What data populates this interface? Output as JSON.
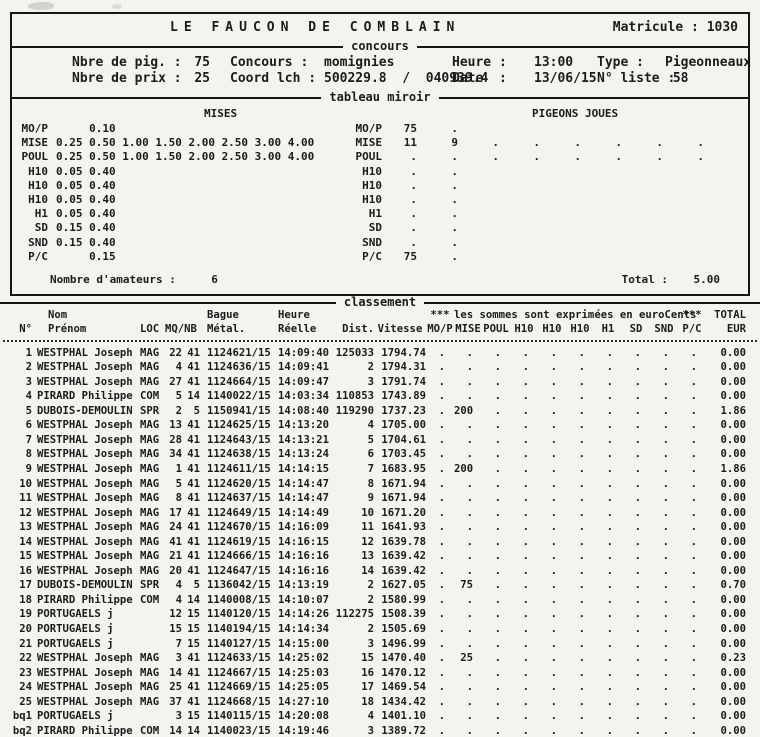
{
  "header": {
    "title": "LE FAUCON DE COMBLAIN",
    "matricule_label": "Matricule :",
    "matricule_value": "1030"
  },
  "concours": {
    "divider": "concours",
    "fields": [
      {
        "label": "Nbre de pig. :",
        "value": "75"
      },
      {
        "label": "Concours :",
        "value": "momignies"
      },
      {
        "label": "Heure :",
        "value": "13:00"
      },
      {
        "label": "Type :",
        "value": "Pigeonneaux"
      },
      {
        "label": "Nbre de prix :",
        "value": "25"
      },
      {
        "label": "Coord lch :",
        "value": "500229.8  /  040939.4"
      },
      {
        "label": "Date  :",
        "value": "13/06/15"
      },
      {
        "label": "N° liste :",
        "value": " 58"
      }
    ]
  },
  "miroir": {
    "divider": "tableau miroir",
    "mises_title": "MISES",
    "pigeons_title": "PIGEONS JOUES",
    "rows": [
      {
        "label": "MO/P",
        "mises": "     0.10",
        "joues": [
          "75",
          "."
        ]
      },
      {
        "label": "MISE",
        "mises": "0.25 0.50 1.00 1.50 2.00 2.50 3.00 4.00",
        "joues": [
          "11",
          "9",
          ".",
          ".",
          ".",
          ".",
          ".",
          "."
        ]
      },
      {
        "label": "POUL",
        "mises": "0.25 0.50 1.00 1.50 2.00 2.50 3.00 4.00",
        "joues": [
          ".",
          ".",
          ".",
          ".",
          ".",
          ".",
          ".",
          "."
        ]
      },
      {
        "label": "H10",
        "mises": "0.05 0.40",
        "joues": [
          ".",
          "."
        ]
      },
      {
        "label": "H10",
        "mises": "0.05 0.40",
        "joues": [
          ".",
          "."
        ]
      },
      {
        "label": "H10",
        "mises": "0.05 0.40",
        "joues": [
          ".",
          "."
        ]
      },
      {
        "label": "H1",
        "mises": "0.05 0.40",
        "joues": [
          ".",
          "."
        ]
      },
      {
        "label": "SD",
        "mises": "0.15 0.40",
        "joues": [
          ".",
          "."
        ]
      },
      {
        "label": "SND",
        "mises": "0.15 0.40",
        "joues": [
          ".",
          "."
        ]
      },
      {
        "label": "P/C",
        "mises": "     0.15",
        "joues": [
          "75",
          "."
        ]
      }
    ],
    "amateurs_label": "Nombre d'amateurs :",
    "amateurs_value": "6",
    "total_label": "Total :",
    "total_value": "5.00"
  },
  "classement": {
    "divider": "classement",
    "stars": "***",
    "banner": "les sommes sont exprimées en euroCents",
    "header": {
      "col_no": "N°",
      "col_nom": "Nom",
      "col_prenom": "Prénom",
      "col_loc": "LOC",
      "col_mqnb": "MQ/NB",
      "col_bague": "Bague",
      "col_metal": "Métal.",
      "col_heure": "Heure",
      "col_reelle": "Réelle",
      "col_dist": "Dist.",
      "col_vitesse": "Vitesse",
      "col_total": "TOTAL",
      "col_eur": "EUR",
      "stakes": [
        "MO/P",
        "MISE",
        "POUL",
        "H10",
        "H10",
        "H10",
        "H1",
        "SD",
        "SND",
        "P/C"
      ]
    },
    "empty_marker": ".",
    "rows": [
      {
        "no": "1",
        "name": "WESTPHAL Joseph",
        "loc": "MAG",
        "mq": "22",
        "nb": "41",
        "bague": "1124621/15",
        "heure": "14:09:40",
        "dist": "125033",
        "vitesse": "1794.74",
        "mise": "",
        "total": "0.00"
      },
      {
        "no": "2",
        "name": "WESTPHAL Joseph",
        "loc": "MAG",
        "mq": "4",
        "nb": "41",
        "bague": "1124636/15",
        "heure": "14:09:41",
        "dist": "2",
        "vitesse": "1794.31",
        "mise": "",
        "total": "0.00"
      },
      {
        "no": "3",
        "name": "WESTPHAL Joseph",
        "loc": "MAG",
        "mq": "27",
        "nb": "41",
        "bague": "1124664/15",
        "heure": "14:09:47",
        "dist": "3",
        "vitesse": "1791.74",
        "mise": "",
        "total": "0.00"
      },
      {
        "no": "4",
        "name": "PIRARD Philippe",
        "loc": "COM",
        "mq": "5",
        "nb": "14",
        "bague": "1140022/15",
        "heure": "14:03:34",
        "dist": "110853",
        "vitesse": "1743.89",
        "mise": "",
        "total": "0.00"
      },
      {
        "no": "5",
        "name": "DUBOIS-DEMOULIN",
        "loc": "SPR",
        "mq": "2",
        "nb": "5",
        "bague": "1150941/15",
        "heure": "14:08:40",
        "dist": "119290",
        "vitesse": "1737.23",
        "mise": "200",
        "total": "1.86"
      },
      {
        "no": "6",
        "name": "WESTPHAL Joseph",
        "loc": "MAG",
        "mq": "13",
        "nb": "41",
        "bague": "1124625/15",
        "heure": "14:13:20",
        "dist": "4",
        "vitesse": "1705.00",
        "mise": "",
        "total": "0.00"
      },
      {
        "no": "7",
        "name": "WESTPHAL Joseph",
        "loc": "MAG",
        "mq": "28",
        "nb": "41",
        "bague": "1124643/15",
        "heure": "14:13:21",
        "dist": "5",
        "vitesse": "1704.61",
        "mise": "",
        "total": "0.00"
      },
      {
        "no": "8",
        "name": "WESTPHAL Joseph",
        "loc": "MAG",
        "mq": "34",
        "nb": "41",
        "bague": "1124638/15",
        "heure": "14:13:24",
        "dist": "6",
        "vitesse": "1703.45",
        "mise": "",
        "total": "0.00"
      },
      {
        "no": "9",
        "name": "WESTPHAL Joseph",
        "loc": "MAG",
        "mq": "1",
        "nb": "41",
        "bague": "1124611/15",
        "heure": "14:14:15",
        "dist": "7",
        "vitesse": "1683.95",
        "mise": "200",
        "total": "1.86"
      },
      {
        "no": "10",
        "name": "WESTPHAL Joseph",
        "loc": "MAG",
        "mq": "5",
        "nb": "41",
        "bague": "1124620/15",
        "heure": "14:14:47",
        "dist": "8",
        "vitesse": "1671.94",
        "mise": "",
        "total": "0.00"
      },
      {
        "no": "11",
        "name": "WESTPHAL Joseph",
        "loc": "MAG",
        "mq": "8",
        "nb": "41",
        "bague": "1124637/15",
        "heure": "14:14:47",
        "dist": "9",
        "vitesse": "1671.94",
        "mise": "",
        "total": "0.00"
      },
      {
        "no": "12",
        "name": "WESTPHAL Joseph",
        "loc": "MAG",
        "mq": "17",
        "nb": "41",
        "bague": "1124649/15",
        "heure": "14:14:49",
        "dist": "10",
        "vitesse": "1671.20",
        "mise": "",
        "total": "0.00"
      },
      {
        "no": "13",
        "name": "WESTPHAL Joseph",
        "loc": "MAG",
        "mq": "24",
        "nb": "41",
        "bague": "1124670/15",
        "heure": "14:16:09",
        "dist": "11",
        "vitesse": "1641.93",
        "mise": "",
        "total": "0.00"
      },
      {
        "no": "14",
        "name": "WESTPHAL Joseph",
        "loc": "MAG",
        "mq": "41",
        "nb": "41",
        "bague": "1124619/15",
        "heure": "14:16:15",
        "dist": "12",
        "vitesse": "1639.78",
        "mise": "",
        "total": "0.00"
      },
      {
        "no": "15",
        "name": "WESTPHAL Joseph",
        "loc": "MAG",
        "mq": "21",
        "nb": "41",
        "bague": "1124666/15",
        "heure": "14:16:16",
        "dist": "13",
        "vitesse": "1639.42",
        "mise": "",
        "total": "0.00"
      },
      {
        "no": "16",
        "name": "WESTPHAL Joseph",
        "loc": "MAG",
        "mq": "20",
        "nb": "41",
        "bague": "1124647/15",
        "heure": "14:16:16",
        "dist": "14",
        "vitesse": "1639.42",
        "mise": "",
        "total": "0.00"
      },
      {
        "no": "17",
        "name": "DUBOIS-DEMOULIN",
        "loc": "SPR",
        "mq": "4",
        "nb": "5",
        "bague": "1136042/15",
        "heure": "14:13:19",
        "dist": "2",
        "vitesse": "1627.05",
        "mise": "75",
        "total": "0.70"
      },
      {
        "no": "18",
        "name": "PIRARD Philippe",
        "loc": "COM",
        "mq": "4",
        "nb": "14",
        "bague": "1140008/15",
        "heure": "14:10:07",
        "dist": "2",
        "vitesse": "1580.99",
        "mise": "",
        "total": "0.00"
      },
      {
        "no": "19",
        "name": "PORTUGAELS j",
        "loc": "",
        "mq": "12",
        "nb": "15",
        "bague": "1140120/15",
        "heure": "14:14:26",
        "dist": "112275",
        "vitesse": "1508.39",
        "mise": "",
        "total": "0.00"
      },
      {
        "no": "20",
        "name": "PORTUGAELS j",
        "loc": "",
        "mq": "15",
        "nb": "15",
        "bague": "1140194/15",
        "heure": "14:14:34",
        "dist": "2",
        "vitesse": "1505.69",
        "mise": "",
        "total": "0.00"
      },
      {
        "no": "21",
        "name": "PORTUGAELS j",
        "loc": "",
        "mq": "7",
        "nb": "15",
        "bague": "1140127/15",
        "heure": "14:15:00",
        "dist": "3",
        "vitesse": "1496.99",
        "mise": "",
        "total": "0.00"
      },
      {
        "no": "22",
        "name": "WESTPHAL Joseph",
        "loc": "MAG",
        "mq": "3",
        "nb": "41",
        "bague": "1124633/15",
        "heure": "14:25:02",
        "dist": "15",
        "vitesse": "1470.40",
        "mise": "25",
        "total": "0.23"
      },
      {
        "no": "23",
        "name": "WESTPHAL Joseph",
        "loc": "MAG",
        "mq": "14",
        "nb": "41",
        "bague": "1124667/15",
        "heure": "14:25:03",
        "dist": "16",
        "vitesse": "1470.12",
        "mise": "",
        "total": "0.00"
      },
      {
        "no": "24",
        "name": "WESTPHAL Joseph",
        "loc": "MAG",
        "mq": "25",
        "nb": "41",
        "bague": "1124669/15",
        "heure": "14:25:05",
        "dist": "17",
        "vitesse": "1469.54",
        "mise": "",
        "total": "0.00"
      },
      {
        "no": "25",
        "name": "WESTPHAL Joseph",
        "loc": "MAG",
        "mq": "37",
        "nb": "41",
        "bague": "1124668/15",
        "heure": "14:27:10",
        "dist": "18",
        "vitesse": "1434.42",
        "mise": "",
        "total": "0.00"
      },
      {
        "no": "bq1",
        "name": "PORTUGAELS j",
        "loc": "",
        "mq": "3",
        "nb": "15",
        "bague": "1140115/15",
        "heure": "14:20:08",
        "dist": "4",
        "vitesse": "1401.10",
        "mise": "",
        "total": "0.00"
      },
      {
        "no": "bq2",
        "name": "PIRARD Philippe",
        "loc": "COM",
        "mq": "14",
        "nb": "14",
        "bague": "1140023/15",
        "heure": "14:19:46",
        "dist": "3",
        "vitesse": "1389.72",
        "mise": "",
        "total": "0.00"
      }
    ]
  }
}
